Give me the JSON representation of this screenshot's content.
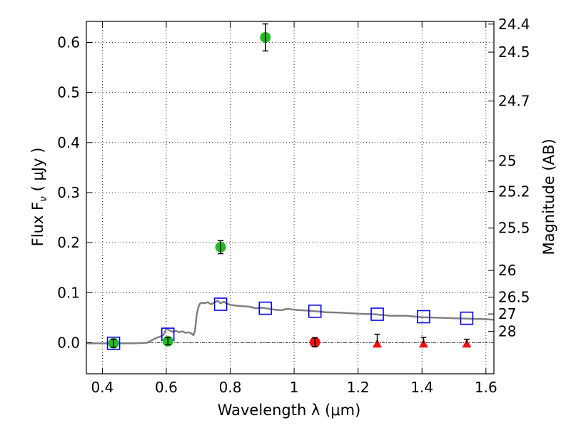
{
  "chart_data": {
    "type": "scatter",
    "xlabel": "Wavelength  λ (μm)",
    "ylabel": "Flux  F",
    "ylabel_sub": "ν",
    "ylabel_units": "  ( μJy )",
    "ylabel_right": "Magnitude (AB)",
    "xlim": [
      0.35,
      1.625
    ],
    "ylim": [
      -0.062,
      0.642
    ],
    "x_ticks": [
      0.4,
      0.6,
      0.8,
      1.0,
      1.2,
      1.4,
      1.6
    ],
    "x_tick_labels": [
      "0.4",
      "0.6",
      "0.8",
      "1",
      "1.2",
      "1.4",
      "1.6"
    ],
    "y_ticks": [
      0.0,
      0.1,
      0.2,
      0.3,
      0.4,
      0.5,
      0.6
    ],
    "y_tick_labels": [
      "0.0",
      "0.1",
      "0.2",
      "0.3",
      "0.4",
      "0.5",
      "0.6"
    ],
    "right_ticks": [
      {
        "label": "24.4",
        "flux": 0.6366
      },
      {
        "label": "24.5",
        "flux": 0.5806
      },
      {
        "label": "24.7",
        "flux": 0.4829
      },
      {
        "label": "25",
        "flux": 0.3631
      },
      {
        "label": "25.2",
        "flux": 0.302
      },
      {
        "label": "25.5",
        "flux": 0.2291
      },
      {
        "label": "26",
        "flux": 0.1445
      },
      {
        "label": "26.5",
        "flux": 0.0912
      },
      {
        "label": "27",
        "flux": 0.0575
      },
      {
        "label": "28",
        "flux": 0.0229
      }
    ],
    "grid": true,
    "colors": {
      "model": "#808080",
      "green": "#22bb22",
      "red": "#ee1111",
      "model_points": "#0000ee",
      "errorbar": "#000000"
    },
    "series": [
      {
        "kind": "line",
        "x": [
          0.35,
          0.4,
          0.45,
          0.5,
          0.54,
          0.555,
          0.57,
          0.58,
          0.59,
          0.595,
          0.6,
          0.61,
          0.62,
          0.63,
          0.64,
          0.65,
          0.66,
          0.67,
          0.68,
          0.685,
          0.69,
          0.695,
          0.7,
          0.705,
          0.71,
          0.72,
          0.73,
          0.74,
          0.75,
          0.76,
          0.77,
          0.78,
          0.79,
          0.8,
          0.82,
          0.84,
          0.86,
          0.88,
          0.9,
          0.92,
          0.94,
          0.96,
          0.98,
          1.0,
          1.05,
          1.1,
          1.15,
          1.2,
          1.25,
          1.3,
          1.35,
          1.4,
          1.45,
          1.5,
          1.55,
          1.6,
          1.625
        ],
        "y": [
          -0.001,
          -0.001,
          -0.001,
          -0.001,
          0.0,
          0.005,
          0.01,
          0.012,
          0.015,
          0.02,
          0.028,
          0.025,
          0.022,
          0.024,
          0.021,
          0.023,
          0.02,
          0.021,
          0.018,
          0.015,
          0.025,
          0.055,
          0.07,
          0.078,
          0.08,
          0.079,
          0.081,
          0.077,
          0.08,
          0.084,
          0.079,
          0.082,
          0.078,
          0.076,
          0.074,
          0.073,
          0.072,
          0.069,
          0.07,
          0.068,
          0.066,
          0.065,
          0.068,
          0.066,
          0.064,
          0.061,
          0.06,
          0.058,
          0.057,
          0.054,
          0.054,
          0.051,
          0.05,
          0.049,
          0.048,
          0.047,
          0.046
        ]
      },
      {
        "kind": "points",
        "marker": "square",
        "x": [
          0.435,
          0.605,
          0.77,
          0.91,
          1.065,
          1.26,
          1.405,
          1.54
        ],
        "y": [
          -0.001,
          0.017,
          0.077,
          0.069,
          0.063,
          0.057,
          0.052,
          0.049
        ]
      },
      {
        "kind": "points",
        "marker": "circle",
        "color": "green",
        "x": [
          0.435,
          0.605,
          0.77,
          0.91
        ],
        "y": [
          -0.001,
          0.003,
          0.191,
          0.61
        ],
        "err": [
          0.008,
          0.007,
          0.013,
          0.027
        ]
      },
      {
        "kind": "points",
        "marker": "circle",
        "color": "red",
        "x": [
          1.065
        ],
        "y": [
          0.001
        ],
        "err": [
          0.009
        ]
      },
      {
        "kind": "points",
        "marker": "triangle",
        "color": "red",
        "x": [
          1.26,
          1.405,
          1.54
        ],
        "y": [
          -0.001,
          -0.001,
          -0.001
        ],
        "err_up": [
          0.018,
          0.012,
          0.008
        ]
      }
    ]
  }
}
